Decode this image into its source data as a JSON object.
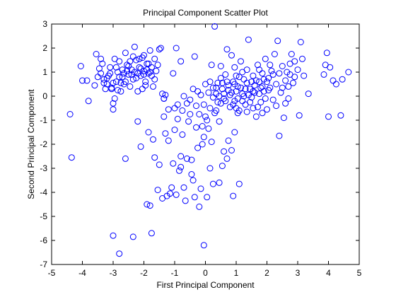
{
  "chart_data": {
    "type": "scatter",
    "title": "Principal Component Scatter Plot",
    "xlabel": "First Principal Component",
    "ylabel": "Second Principal Component",
    "xlim": [
      -5,
      5
    ],
    "ylim": [
      -7,
      3
    ],
    "xticks": [
      "-5",
      "-4",
      "-3",
      "-2",
      "-1",
      "0",
      "1",
      "2",
      "3",
      "4",
      "5"
    ],
    "yticks": [
      "-7",
      "-6",
      "-5",
      "-4",
      "-3",
      "-2",
      "-1",
      "0",
      "1",
      "2",
      "3"
    ],
    "grid": false,
    "marker": "open-circle",
    "marker_color": "#0000ff",
    "series": [
      {
        "points": [
          [
            -4.4,
            -0.75
          ],
          [
            -4.35,
            -2.55
          ],
          [
            -4.05,
            1.25
          ],
          [
            -4.0,
            0.65
          ],
          [
            -3.85,
            0.65
          ],
          [
            -3.8,
            -0.2
          ],
          [
            -3.6,
            0.45
          ],
          [
            -3.55,
            1.75
          ],
          [
            -3.45,
            1.15
          ],
          [
            -3.4,
            0.95
          ],
          [
            -3.35,
            1.35
          ],
          [
            -3.3,
            0.7
          ],
          [
            -3.25,
            0.3
          ],
          [
            -3.2,
            0.5
          ],
          [
            -3.15,
            0.85
          ],
          [
            -3.1,
            1.2
          ],
          [
            -3.05,
            0.35
          ],
          [
            -3.0,
            -0.3
          ],
          [
            -2.95,
            -0.1
          ],
          [
            -2.9,
            0.6
          ],
          [
            -2.85,
            1.0
          ],
          [
            -2.8,
            1.45
          ],
          [
            -2.75,
            0.2
          ],
          [
            -2.7,
            0.8
          ],
          [
            -2.65,
            0.5
          ],
          [
            -2.6,
            1.8
          ],
          [
            -2.55,
            1.3
          ],
          [
            -2.5,
            0.9
          ],
          [
            -2.45,
            0.4
          ],
          [
            -2.4,
            1.1
          ],
          [
            -2.35,
            0.7
          ],
          [
            -2.3,
            2.05
          ],
          [
            -2.25,
            1.5
          ],
          [
            -2.2,
            0.2
          ],
          [
            -2.15,
            1.2
          ],
          [
            -2.1,
            0.85
          ],
          [
            -2.05,
            1.6
          ],
          [
            -2.0,
            1.05
          ],
          [
            -1.95,
            0.6
          ],
          [
            -1.9,
            1.35
          ],
          [
            -1.85,
            0.95
          ],
          [
            -1.8,
            1.9
          ],
          [
            -1.75,
            1.2
          ],
          [
            -1.7,
            0.4
          ],
          [
            -1.65,
            1.55
          ],
          [
            -1.6,
            1.05
          ],
          [
            -1.55,
            1.3
          ],
          [
            -1.5,
            1.95
          ],
          [
            -1.45,
            2.0
          ],
          [
            -1.4,
            0.1
          ],
          [
            -1.35,
            -0.1
          ],
          [
            -1.3,
            0.05
          ],
          [
            -3.5,
            0.8
          ],
          [
            -3.3,
            0.55
          ],
          [
            -3.1,
            0.95
          ],
          [
            -2.9,
            1.2
          ],
          [
            -2.7,
            1.1
          ],
          [
            -2.6,
            0.6
          ],
          [
            -2.5,
            1.25
          ],
          [
            -2.4,
            0.9
          ],
          [
            -2.3,
            1.0
          ],
          [
            -2.2,
            0.95
          ],
          [
            -2.1,
            1.15
          ],
          [
            -2.0,
            0.9
          ],
          [
            -1.9,
            1.1
          ],
          [
            -1.8,
            1.0
          ],
          [
            -3.2,
            0.75
          ],
          [
            -3.0,
            0.55
          ],
          [
            -2.8,
            0.8
          ],
          [
            -2.95,
            1.55
          ],
          [
            -3.4,
            1.55
          ],
          [
            -2.65,
            0.95
          ],
          [
            -2.45,
            1.45
          ],
          [
            -2.25,
            0.75
          ],
          [
            -2.05,
            0.3
          ],
          [
            -1.95,
            0.45
          ],
          [
            -1.85,
            1.35
          ],
          [
            -1.75,
            0.85
          ],
          [
            -2.15,
            1.55
          ],
          [
            -2.35,
            1.65
          ],
          [
            -2.55,
            1.05
          ],
          [
            -2.75,
            0.55
          ],
          [
            -3.05,
            0.3
          ],
          [
            -2.85,
            0.25
          ],
          [
            -1.65,
            0.7
          ],
          [
            -2.0,
            1.7
          ],
          [
            -3.0,
            -0.55
          ],
          [
            -3.0,
            -5.8
          ],
          [
            -2.8,
            -6.55
          ],
          [
            -2.6,
            -2.6
          ],
          [
            -2.35,
            -5.85
          ],
          [
            -2.2,
            -1.05
          ],
          [
            -2.1,
            -2.1
          ],
          [
            -1.9,
            -4.5
          ],
          [
            -1.85,
            -1.5
          ],
          [
            -1.8,
            -4.55
          ],
          [
            -1.75,
            -5.7
          ],
          [
            -1.7,
            -1.8
          ],
          [
            -1.65,
            -2.55
          ],
          [
            -1.55,
            -3.9
          ],
          [
            -1.5,
            -2.85
          ],
          [
            -1.4,
            -4.25
          ],
          [
            -1.35,
            -0.85
          ],
          [
            -1.3,
            -1.55
          ],
          [
            -1.25,
            -4.15
          ],
          [
            -1.2,
            -1.85
          ],
          [
            -1.15,
            -4.05
          ],
          [
            -1.1,
            -3.8
          ],
          [
            -1.05,
            -2.8
          ],
          [
            -1.0,
            -1.4
          ],
          [
            -0.95,
            -4.1
          ],
          [
            -0.9,
            -0.35
          ],
          [
            -0.85,
            -3.1
          ],
          [
            -0.8,
            -2.95
          ],
          [
            -0.8,
            -2.5
          ],
          [
            -0.75,
            -1.6
          ],
          [
            -0.7,
            -3.8
          ],
          [
            -0.65,
            -4.35
          ],
          [
            -0.6,
            -2.6
          ],
          [
            -0.55,
            -1.05
          ],
          [
            -0.5,
            -0.75
          ],
          [
            -0.45,
            -2.65
          ],
          [
            -0.45,
            -3.25
          ],
          [
            -0.4,
            -3.5
          ],
          [
            -0.35,
            -4.2
          ],
          [
            -0.3,
            -1.3
          ],
          [
            -0.25,
            -2.15
          ],
          [
            -0.2,
            -4.6
          ],
          [
            -0.15,
            -3.85
          ],
          [
            -0.1,
            -2.0
          ],
          [
            -0.05,
            -1.7
          ],
          [
            -0.05,
            -6.2
          ],
          [
            0.0,
            -0.85
          ],
          [
            0.05,
            -4.2
          ],
          [
            0.1,
            -1.35
          ],
          [
            0.15,
            -3.0
          ],
          [
            0.2,
            -1.9
          ],
          [
            0.25,
            -3.65
          ],
          [
            0.35,
            -0.6
          ],
          [
            0.45,
            -3.6
          ],
          [
            0.55,
            -2.9
          ],
          [
            0.6,
            -2.3
          ],
          [
            0.7,
            -2.6
          ],
          [
            0.75,
            -1.85
          ],
          [
            0.85,
            -2.25
          ],
          [
            0.9,
            -4.15
          ],
          [
            0.95,
            -1.5
          ],
          [
            1.05,
            -0.7
          ],
          [
            1.1,
            -3.65
          ],
          [
            -1.35,
            -0.1
          ],
          [
            -1.2,
            -0.55
          ],
          [
            -1.05,
            0.95
          ],
          [
            -0.9,
            -0.95
          ],
          [
            -0.95,
            2.0
          ],
          [
            -1.0,
            -0.5
          ],
          [
            -0.8,
            1.45
          ],
          [
            -0.75,
            -0.6
          ],
          [
            -0.7,
            0.0
          ],
          [
            -0.6,
            -0.3
          ],
          [
            -0.5,
            -0.15
          ],
          [
            -0.4,
            0.3
          ],
          [
            -0.35,
            1.65
          ],
          [
            -0.3,
            -0.4
          ],
          [
            -0.25,
            0.2
          ],
          [
            -0.2,
            -0.75
          ],
          [
            -0.15,
            0.05
          ],
          [
            -0.1,
            -1.25
          ],
          [
            -0.05,
            -0.35
          ],
          [
            0.0,
            0.5
          ],
          [
            0.05,
            -1.0
          ],
          [
            0.1,
            0.15
          ],
          [
            0.15,
            -0.5
          ],
          [
            0.2,
            1.3
          ],
          [
            0.25,
            -0.05
          ],
          [
            0.3,
            2.9
          ],
          [
            0.35,
            0.35
          ],
          [
            0.4,
            -0.25
          ],
          [
            0.45,
            -1.05
          ],
          [
            0.5,
            1.25
          ],
          [
            0.55,
            0.55
          ],
          [
            0.6,
            -0.1
          ],
          [
            0.65,
            0.9
          ],
          [
            0.7,
            1.95
          ],
          [
            0.75,
            0.25
          ],
          [
            0.8,
            -0.45
          ],
          [
            0.85,
            1.7
          ],
          [
            0.9,
            0.6
          ],
          [
            0.95,
            -0.2
          ],
          [
            1.0,
            0.85
          ],
          [
            1.05,
            0.4
          ],
          [
            1.1,
            -0.6
          ],
          [
            1.15,
            1.45
          ],
          [
            1.2,
            0.1
          ],
          [
            1.25,
            0.7
          ],
          [
            1.3,
            -0.35
          ],
          [
            1.35,
            1.1
          ],
          [
            1.4,
            2.35
          ],
          [
            1.45,
            0.3
          ],
          [
            1.5,
            -0.05
          ],
          [
            1.55,
            0.85
          ],
          [
            1.6,
            0.45
          ],
          [
            1.65,
            -0.85
          ],
          [
            1.7,
            1.3
          ],
          [
            1.75,
            0.6
          ],
          [
            1.8,
            -0.25
          ],
          [
            1.85,
            0.95
          ],
          [
            1.9,
            0.2
          ],
          [
            1.95,
            1.55
          ],
          [
            2.0,
            -0.55
          ],
          [
            2.05,
            0.75
          ],
          [
            2.1,
            0.35
          ],
          [
            2.15,
            1.05
          ],
          [
            2.2,
            -0.15
          ],
          [
            2.25,
            1.75
          ],
          [
            2.3,
            0.5
          ],
          [
            2.35,
            2.3
          ],
          [
            2.4,
            -1.65
          ],
          [
            2.45,
            0.15
          ],
          [
            2.5,
            1.25
          ],
          [
            2.55,
            -0.9
          ],
          [
            2.6,
            0.65
          ],
          [
            2.65,
            1.0
          ],
          [
            2.7,
            0.4
          ],
          [
            2.75,
            1.35
          ],
          [
            2.8,
            1.75
          ],
          [
            2.85,
            0.55
          ],
          [
            2.9,
            1.45
          ],
          [
            3.0,
            1.1
          ],
          [
            3.05,
            -0.8
          ],
          [
            3.1,
            2.25
          ],
          [
            3.15,
            1.55
          ],
          [
            3.2,
            0.85
          ],
          [
            3.35,
            0.1
          ],
          [
            3.85,
            0.9
          ],
          [
            3.9,
            1.3
          ],
          [
            3.95,
            1.8
          ],
          [
            4.0,
            -0.85
          ],
          [
            4.05,
            1.2
          ],
          [
            4.15,
            0.65
          ],
          [
            4.25,
            0.5
          ],
          [
            4.4,
            -0.8
          ],
          [
            4.45,
            0.7
          ],
          [
            4.65,
            1.0
          ],
          [
            0.35,
            0.1
          ],
          [
            0.45,
            0.0
          ],
          [
            0.55,
            0.3
          ],
          [
            0.65,
            -0.2
          ],
          [
            0.75,
            0.45
          ],
          [
            0.85,
            0.15
          ],
          [
            0.95,
            0.5
          ],
          [
            1.05,
            -0.1
          ],
          [
            1.15,
            0.35
          ],
          [
            1.25,
            0.0
          ],
          [
            1.35,
            0.55
          ],
          [
            1.45,
            -0.25
          ],
          [
            1.55,
            0.2
          ],
          [
            1.65,
            0.65
          ],
          [
            1.75,
            0.1
          ],
          [
            1.85,
            0.4
          ],
          [
            1.95,
            -0.1
          ],
          [
            2.05,
            0.25
          ],
          [
            0.5,
            -0.3
          ],
          [
            0.7,
            0.6
          ],
          [
            0.9,
            -0.35
          ],
          [
            1.1,
            0.8
          ],
          [
            1.3,
            0.3
          ],
          [
            1.5,
            0.6
          ],
          [
            1.7,
            -0.45
          ],
          [
            1.9,
            0.7
          ],
          [
            0.6,
            0.1
          ],
          [
            0.8,
            0.05
          ],
          [
            1.0,
            0.2
          ],
          [
            1.2,
            -0.2
          ],
          [
            1.4,
            0.05
          ],
          [
            1.6,
            0.15
          ],
          [
            1.8,
            0.35
          ],
          [
            0.4,
            0.55
          ],
          [
            2.2,
            0.9
          ],
          [
            2.3,
            -0.4
          ],
          [
            2.5,
            0.35
          ],
          [
            2.7,
            -0.1
          ],
          [
            2.9,
            0.8
          ],
          [
            1.0,
            -0.5
          ],
          [
            1.2,
            1.0
          ],
          [
            0.3,
            -0.7
          ],
          [
            0.25,
            0.35
          ],
          [
            1.55,
            -0.5
          ],
          [
            0.95,
            1.2
          ],
          [
            1.75,
            1.1
          ],
          [
            2.1,
            1.3
          ],
          [
            2.4,
            0.95
          ],
          [
            2.6,
            -0.3
          ],
          [
            2.75,
            0.9
          ],
          [
            0.15,
            0.6
          ],
          [
            0.5,
            0.75
          ],
          [
            1.35,
            -0.65
          ],
          [
            1.85,
            -0.7
          ],
          [
            2.0,
            0.6
          ]
        ]
      }
    ]
  }
}
